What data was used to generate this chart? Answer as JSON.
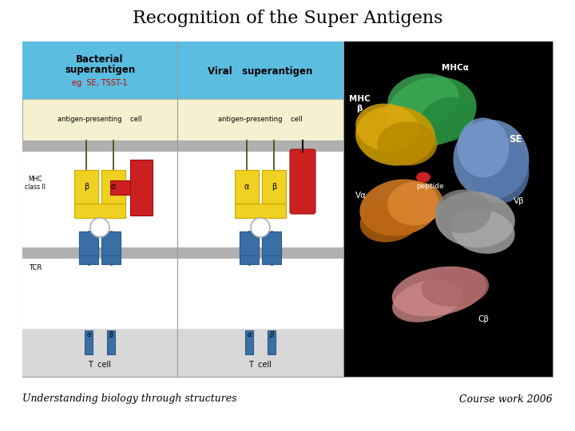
{
  "title": "Recognition of the Super Antigens",
  "title_fontsize": 16,
  "title_font": "serif",
  "footer_left": "Understanding biology through structures",
  "footer_right": "Course work 2006",
  "footer_fontsize": 9,
  "footer_font": "serif",
  "footer_style": "italic",
  "bg_color": "#ffffff",
  "panel1_header_bg": "#5bbde0",
  "panel2_header_bg": "#5bbde0",
  "panel3_bg": "#000000",
  "border_color": "#999999",
  "blue_color": "#3a6ea5",
  "blue_dark": "#2a5a8a",
  "yellow_color": "#f0d020",
  "yellow_dark": "#c8a800",
  "red_color": "#cc2020",
  "red_dark": "#991010",
  "gray_mem": "#b0b0b0",
  "gray_tcell": "#d8d8d8",
  "apc_bg": "#f5f0d0",
  "white_color": "#ffffff",
  "black_color": "#000000",
  "mhc_green": "#33aa55",
  "mhc_yellow": "#ddaa00",
  "se_blue": "#7799bb",
  "se_teal": "#44aaaa",
  "va_orange": "#dd8822",
  "vb_silver": "#aaaaaa",
  "cb_pink": "#cc8888",
  "peptide_red": "#cc2222"
}
